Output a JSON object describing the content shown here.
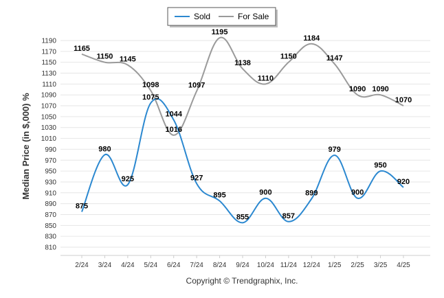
{
  "chart_data": {
    "type": "line",
    "categories": [
      "2/24",
      "3/24",
      "4/24",
      "5/24",
      "6/24",
      "7/24",
      "8/24",
      "9/24",
      "10/24",
      "11/24",
      "12/24",
      "1/25",
      "2/25",
      "3/25",
      "4/25"
    ],
    "series": [
      {
        "name": "Sold",
        "color": "#2b88d0",
        "values": [
          875,
          980,
          925,
          1075,
          1044,
          927,
          895,
          855,
          900,
          857,
          899,
          979,
          900,
          950,
          920
        ]
      },
      {
        "name": "For Sale",
        "color": "#9a9a9a",
        "values": [
          1165,
          1150,
          1145,
          1098,
          1016,
          1097,
          1195,
          1138,
          1110,
          1150,
          1184,
          1147,
          1090,
          1090,
          1070
        ]
      }
    ],
    "ylabel": "Median Price (in $,000) %",
    "xlabel": "",
    "ylim": [
      810,
      1190
    ],
    "yticks": [
      810,
      830,
      850,
      870,
      890,
      910,
      930,
      950,
      970,
      990,
      1010,
      1030,
      1050,
      1070,
      1090,
      1110,
      1130,
      1150,
      1170,
      1190
    ],
    "legend": "top-center",
    "grid": true
  },
  "footer": {
    "copyright": "Copyright © Trendgraphix, Inc."
  }
}
